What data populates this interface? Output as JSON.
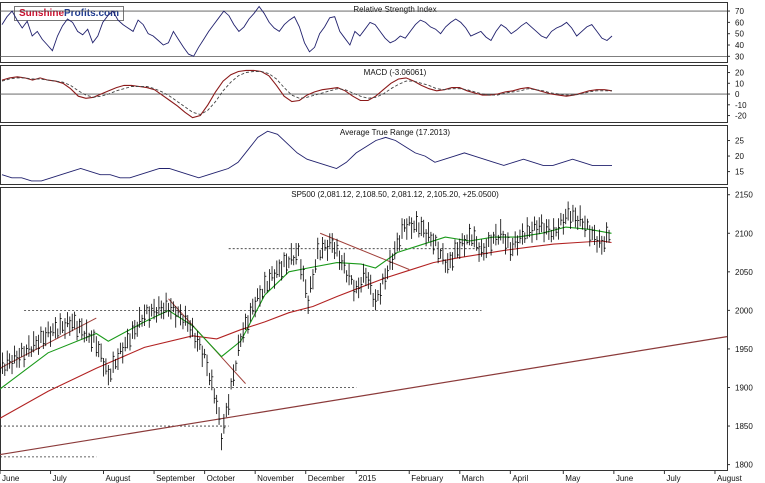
{
  "logo": {
    "part1": "Sunshine",
    "part2": "Profits.com"
  },
  "colors": {
    "price": "#000000",
    "ma_short": "#1a9a1a",
    "ma_long": "#b22222",
    "trendline": "#a0403a",
    "resistance": "#8b3a3a",
    "rsi": "#22226e",
    "macd_signal": "#8b1a1a",
    "grid": "#555555"
  },
  "chart_data": [
    {
      "type": "line",
      "title": "Relative Strength Index",
      "ylim": [
        25,
        78
      ],
      "ticks": [
        "70",
        "60",
        "50",
        "40",
        "30"
      ],
      "tick_values": [
        70,
        60,
        50,
        40,
        30
      ],
      "ref_lines": [
        70,
        30
      ],
      "series": [
        {
          "values": [
            58,
            65,
            70,
            62,
            55,
            61,
            48,
            52,
            45,
            40,
            35,
            48,
            57,
            63,
            60,
            52,
            49,
            54,
            42,
            48,
            60,
            66,
            70,
            62,
            58,
            55,
            52,
            62,
            58,
            50,
            48,
            44,
            40,
            42,
            52,
            45,
            38,
            32,
            30,
            38,
            45,
            52,
            58,
            64,
            70,
            66,
            58,
            52,
            56,
            63,
            68,
            74,
            68,
            60,
            55,
            52,
            58,
            62,
            65,
            56,
            42,
            34,
            38,
            50,
            56,
            64,
            65,
            52,
            46,
            40,
            52,
            48,
            54,
            60,
            58,
            52,
            46,
            42,
            44,
            48,
            46,
            52,
            58,
            62,
            60,
            56,
            54,
            50,
            56,
            60,
            63,
            60,
            55,
            48,
            50,
            52,
            47,
            44,
            52,
            58,
            55,
            50,
            53,
            57,
            60,
            56,
            52,
            48,
            46,
            52,
            55,
            57,
            60,
            55,
            48,
            52,
            56,
            58,
            52,
            46,
            44,
            48
          ]
        }
      ]
    },
    {
      "type": "line",
      "title": "MACD (-3.06061)",
      "ylim": [
        -26,
        27
      ],
      "ticks": [
        "20",
        "10",
        "0",
        "-10",
        "-20"
      ],
      "tick_values": [
        20,
        10,
        0,
        -10,
        -20
      ],
      "ref_lines": [
        0
      ],
      "series": [
        {
          "values": [
            13,
            15,
            16,
            15,
            13,
            15,
            13,
            12,
            10,
            5,
            -2,
            -4,
            -3,
            0,
            3,
            6,
            8,
            8,
            7,
            6,
            4,
            -1,
            -6,
            -11,
            -17,
            -22,
            -20,
            -10,
            2,
            12,
            18,
            21,
            22,
            22,
            21,
            17,
            8,
            -2,
            -7,
            -6,
            -1,
            2,
            4,
            5,
            6,
            3,
            -2,
            -6,
            -6,
            -2,
            4,
            10,
            14,
            15,
            12,
            8,
            5,
            3,
            4,
            6,
            6,
            3,
            1,
            -1,
            -1,
            0,
            2,
            3,
            5,
            6,
            4,
            2,
            0,
            -1,
            -2,
            -1,
            1,
            3,
            4,
            4,
            3
          ]
        },
        {
          "values": [
            12,
            14,
            15,
            15,
            14,
            14,
            13,
            12,
            11,
            8,
            3,
            -1,
            -3,
            -2,
            0,
            3,
            5,
            7,
            7,
            7,
            5,
            2,
            -2,
            -7,
            -12,
            -17,
            -19,
            -15,
            -7,
            3,
            11,
            17,
            20,
            21,
            21,
            19,
            14,
            6,
            -1,
            -4,
            -3,
            -1,
            1,
            3,
            5,
            4,
            1,
            -2,
            -4,
            -3,
            0,
            5,
            9,
            12,
            12,
            10,
            8,
            5,
            4,
            5,
            5,
            4,
            2,
            0,
            -1,
            -1,
            1,
            2,
            3,
            5,
            4,
            3,
            1,
            0,
            -1,
            -1,
            0,
            2,
            3,
            3,
            3
          ]
        }
      ]
    },
    {
      "type": "line",
      "title": "Average True Range (17.2013)",
      "ylim": [
        11,
        30
      ],
      "ticks": [
        "25",
        "20",
        "15"
      ],
      "tick_values": [
        25,
        20,
        15
      ],
      "series": [
        {
          "values": [
            14,
            13,
            13,
            12,
            12,
            13,
            14,
            15,
            16,
            15,
            14,
            14,
            13,
            13,
            14,
            15,
            16,
            16,
            15,
            14,
            13,
            14,
            15,
            16,
            18,
            22,
            26,
            28,
            27,
            24,
            21,
            19,
            18,
            17,
            16,
            18,
            21,
            23,
            25,
            26,
            25,
            23,
            21,
            20,
            18,
            19,
            20,
            21,
            20,
            19,
            18,
            17,
            18,
            19,
            18,
            17,
            17,
            18,
            19,
            18,
            17,
            17,
            17
          ]
        }
      ]
    },
    {
      "type": "line",
      "title": "SP500 (2,081.12, 2,108.50, 2,081.12, 2,105.20, +25.0500)",
      "ylim": [
        1793,
        2160
      ],
      "ticks": [
        "2150",
        "2100",
        "2050",
        "2000",
        "1950",
        "1900",
        "1850",
        "1800"
      ],
      "tick_values": [
        2150,
        2100,
        2050,
        2000,
        1950,
        1900,
        1850,
        1800
      ],
      "x_labels": [
        "June",
        "July",
        "August",
        "September",
        "October",
        "November",
        "December",
        "2015",
        "February",
        "March",
        "April",
        "May",
        "June",
        "July",
        "August"
      ],
      "x_label_positions": [
        0,
        21,
        43,
        64,
        85,
        106,
        127,
        148,
        170,
        191,
        212,
        234,
        255,
        276,
        297
      ],
      "x_range": [
        0,
        302
      ],
      "series": [
        {
          "name": "price",
          "values": [
            [
              0,
              1925
            ],
            [
              10,
              1945
            ],
            [
              20,
              1970
            ],
            [
              30,
              1985
            ],
            [
              40,
              1958
            ],
            [
              45,
              1915
            ],
            [
              50,
              1945
            ],
            [
              60,
              1995
            ],
            [
              70,
              2005
            ],
            [
              78,
              1985
            ],
            [
              85,
              1940
            ],
            [
              90,
              1880
            ],
            [
              92,
              1835
            ],
            [
              96,
              1900
            ],
            [
              100,
              1965
            ],
            [
              106,
              2010
            ],
            [
              112,
              2040
            ],
            [
              118,
              2060
            ],
            [
              124,
              2075
            ],
            [
              128,
              2012
            ],
            [
              132,
              2075
            ],
            [
              138,
              2088
            ],
            [
              144,
              2050
            ],
            [
              148,
              2025
            ],
            [
              152,
              2048
            ],
            [
              156,
              2010
            ],
            [
              162,
              2060
            ],
            [
              168,
              2110
            ],
            [
              174,
              2110
            ],
            [
              180,
              2090
            ],
            [
              186,
              2058
            ],
            [
              190,
              2080
            ],
            [
              196,
              2097
            ],
            [
              200,
              2075
            ],
            [
              204,
              2090
            ],
            [
              208,
              2100
            ],
            [
              212,
              2080
            ],
            [
              218,
              2100
            ],
            [
              224,
              2110
            ],
            [
              230,
              2100
            ],
            [
              236,
              2125
            ],
            [
              242,
              2115
            ],
            [
              246,
              2098
            ],
            [
              250,
              2085
            ],
            [
              254,
              2105
            ]
          ]
        },
        {
          "name": "50-day MA",
          "values": [
            [
              0,
              1898
            ],
            [
              20,
              1945
            ],
            [
              40,
              1970
            ],
            [
              45,
              1960
            ],
            [
              60,
              1985
            ],
            [
              70,
              2000
            ],
            [
              80,
              1980
            ],
            [
              92,
              1940
            ],
            [
              100,
              1960
            ],
            [
              110,
              2020
            ],
            [
              120,
              2050
            ],
            [
              128,
              2055
            ],
            [
              140,
              2062
            ],
            [
              150,
              2060
            ],
            [
              156,
              2055
            ],
            [
              165,
              2075
            ],
            [
              175,
              2085
            ],
            [
              185,
              2095
            ],
            [
              195,
              2090
            ],
            [
              205,
              2095
            ],
            [
              215,
              2095
            ],
            [
              225,
              2100
            ],
            [
              235,
              2108
            ],
            [
              245,
              2105
            ],
            [
              254,
              2100
            ]
          ]
        },
        {
          "name": "200-day MA",
          "values": [
            [
              0,
              1860
            ],
            [
              20,
              1895
            ],
            [
              40,
              1925
            ],
            [
              60,
              1952
            ],
            [
              80,
              1967
            ],
            [
              90,
              1963
            ],
            [
              100,
              1975
            ],
            [
              110,
              1985
            ],
            [
              120,
              1997
            ],
            [
              130,
              2005
            ],
            [
              140,
              2018
            ],
            [
              150,
              2030
            ],
            [
              160,
              2042
            ],
            [
              170,
              2052
            ],
            [
              180,
              2062
            ],
            [
              190,
              2068
            ],
            [
              200,
              2073
            ],
            [
              210,
              2078
            ],
            [
              220,
              2082
            ],
            [
              230,
              2086
            ],
            [
              240,
              2088
            ],
            [
              250,
              2090
            ],
            [
              254,
              2088
            ]
          ]
        }
      ],
      "support_lines": [
        {
          "y": 2080,
          "x0": 95,
          "x1": 200
        },
        {
          "y": 2000,
          "x0": 10,
          "x1": 200
        },
        {
          "y": 1900,
          "x0": 0,
          "x1": 148
        },
        {
          "y": 1850,
          "x0": 0,
          "x1": 95
        },
        {
          "y": 1810,
          "x0": 0,
          "x1": 40
        }
      ],
      "trend_lines": [
        {
          "x0": 0,
          "y0": 1813,
          "x1": 302,
          "y1": 1966
        },
        {
          "x0": 0,
          "y0": 1925,
          "x1": 40,
          "y1": 1990
        },
        {
          "x0": 70,
          "y0": 2015,
          "x1": 102,
          "y1": 1905
        },
        {
          "x0": 133,
          "y0": 2100,
          "x1": 170,
          "y1": 2053
        }
      ]
    }
  ]
}
